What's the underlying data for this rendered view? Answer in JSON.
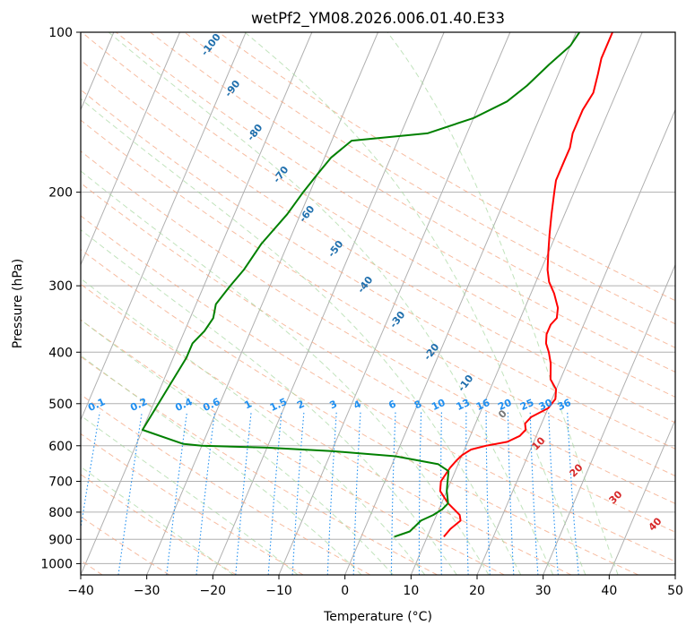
{
  "chart_data": {
    "type": "line",
    "title": "wetPf2_YM08.2026.006.01.40.E33",
    "xlabel": "Temperature (°C)",
    "ylabel": "Pressure (hPa)",
    "xlim": [
      -40,
      50
    ],
    "ylim": [
      1050,
      100
    ],
    "y_scale": "log",
    "grid": true,
    "x_ticks": [
      -40,
      -30,
      -20,
      -10,
      0,
      10,
      20,
      30,
      40,
      50
    ],
    "x_tick_labels": [
      "−40",
      "−30",
      "−20",
      "−10",
      "0",
      "10",
      "20",
      "30",
      "40",
      "50"
    ],
    "y_ticks": [
      100,
      200,
      300,
      400,
      500,
      600,
      700,
      800,
      900,
      1000
    ],
    "y_tick_labels": [
      "100",
      "200",
      "300",
      "400",
      "500",
      "600",
      "700",
      "800",
      "900",
      "1000"
    ],
    "isotherms": [
      -120,
      -110,
      -100,
      -90,
      -80,
      -70,
      -60,
      -50,
      -40,
      -30,
      -20,
      -10,
      0,
      10,
      20,
      30,
      40,
      50
    ],
    "dry_adiabat_labels": [
      "-100",
      "-90",
      "-80",
      "-70",
      "-60",
      "-50",
      "-40",
      "-30",
      "-20",
      "-10"
    ],
    "dry_adiabats_C": [
      -100,
      -90,
      -80,
      -70,
      -60,
      -50,
      -40,
      -30,
      -20,
      -10,
      0,
      10,
      20,
      30,
      40,
      50,
      60,
      70,
      80,
      90,
      100,
      110,
      120,
      130,
      140,
      150
    ],
    "moist_adiabats_C": [
      -20,
      -10,
      0,
      5,
      10,
      15,
      20,
      25,
      30,
      35,
      40
    ],
    "mixing_ratio_values": [
      0.1,
      0.2,
      0.4,
      0.6,
      1,
      1.5,
      2,
      3,
      4,
      6,
      8,
      10,
      13,
      16,
      20,
      25,
      30,
      36
    ],
    "mixing_ratio_labels": [
      "0.1",
      "0.2",
      "0.4",
      "0.6",
      "1",
      "1.5",
      "2",
      "3",
      "4",
      "6",
      "8",
      "10",
      "13",
      "16",
      "20",
      "25",
      "30",
      "36"
    ],
    "wetbulb_labels": [
      "0",
      "10",
      "20",
      "30",
      "40"
    ],
    "series": [
      {
        "color": "#ff0000",
        "points": [
          [
            12.5,
            890
          ],
          [
            13,
            860
          ],
          [
            14,
            830
          ],
          [
            13.5,
            810
          ],
          [
            11,
            770
          ],
          [
            9,
            730
          ],
          [
            8.5,
            700
          ],
          [
            9,
            660
          ],
          [
            9.5,
            640
          ],
          [
            10,
            625
          ],
          [
            11,
            610
          ],
          [
            13,
            600
          ],
          [
            16,
            590
          ],
          [
            17.5,
            575
          ],
          [
            18,
            560
          ],
          [
            17.5,
            545
          ],
          [
            18,
            530
          ],
          [
            20,
            510
          ],
          [
            20.5,
            490
          ],
          [
            20,
            470
          ],
          [
            18.5,
            450
          ],
          [
            17.5,
            420
          ],
          [
            16.5,
            400
          ],
          [
            15.5,
            385
          ],
          [
            15,
            370
          ],
          [
            15,
            355
          ],
          [
            15.5,
            345
          ],
          [
            15,
            330
          ],
          [
            13.5,
            310
          ],
          [
            12,
            295
          ],
          [
            11,
            280
          ],
          [
            10,
            260
          ],
          [
            9,
            240
          ],
          [
            8,
            220
          ],
          [
            7,
            200
          ],
          [
            6.5,
            190
          ],
          [
            6.5,
            175
          ],
          [
            6.5,
            165
          ],
          [
            6,
            155
          ],
          [
            6,
            140
          ],
          [
            6.5,
            130
          ],
          [
            6,
            120
          ],
          [
            5.5,
            112
          ],
          [
            5.5,
            100
          ]
        ]
      },
      {
        "color": "#008000",
        "points": [
          [
            5,
            890
          ],
          [
            6,
            880
          ],
          [
            7,
            870
          ],
          [
            7.5,
            850
          ],
          [
            8,
            830
          ],
          [
            9.5,
            810
          ],
          [
            10.5,
            790
          ],
          [
            11,
            770
          ],
          [
            10,
            730
          ],
          [
            9.5,
            700
          ],
          [
            9,
            670
          ],
          [
            7,
            650
          ],
          [
            0,
            628
          ],
          [
            -10,
            614
          ],
          [
            -20,
            605
          ],
          [
            -30,
            600
          ],
          [
            -33,
            595
          ],
          [
            -40,
            560
          ],
          [
            -38,
            410
          ],
          [
            -38,
            385
          ],
          [
            -37,
            365
          ],
          [
            -36.5,
            345
          ],
          [
            -37,
            325
          ],
          [
            -36,
            300
          ],
          [
            -35,
            280
          ],
          [
            -34,
            250
          ],
          [
            -32,
            220
          ],
          [
            -31,
            200
          ],
          [
            -30,
            185
          ],
          [
            -29,
            172
          ],
          [
            -27,
            160
          ],
          [
            -16,
            155
          ],
          [
            -10,
            145
          ],
          [
            -6,
            135
          ],
          [
            -4,
            126
          ],
          [
            -2,
            115
          ],
          [
            0,
            106
          ],
          [
            0.5,
            100
          ]
        ]
      }
    ]
  }
}
